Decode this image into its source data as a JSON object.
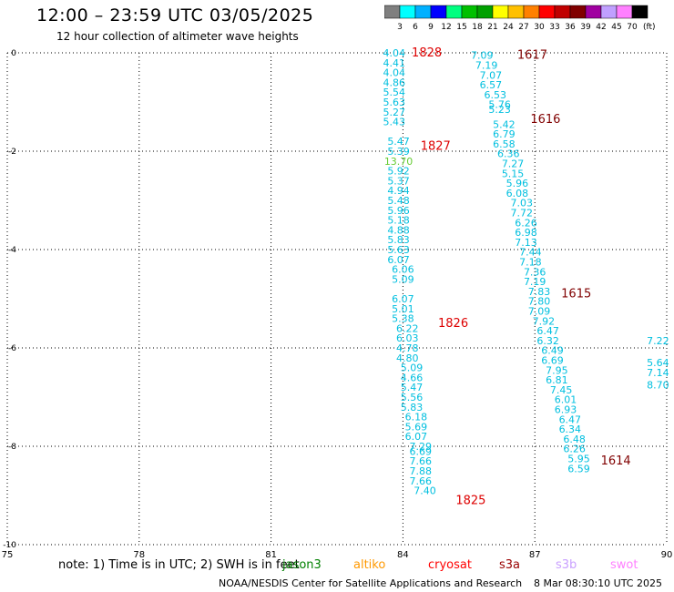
{
  "header": {
    "title": "12:00 – 23:59 UTC 03/05/2025",
    "subtitle": "12 hour collection of altimeter wave heights"
  },
  "colorbar": {
    "unit": "(ft)",
    "colors": [
      "#7f7f7f",
      "#00ffff",
      "#00b0ff",
      "#0000ff",
      "#00ff80",
      "#00c000",
      "#00a000",
      "#ffff00",
      "#ffc000",
      "#ff8000",
      "#ff0000",
      "#c00000",
      "#800000",
      "#a000a0",
      "#c0a0ff",
      "#ff80ff",
      "#000000"
    ],
    "ticks": [
      "3",
      "6",
      "9",
      "12",
      "15",
      "18",
      "21",
      "24",
      "27",
      "30",
      "33",
      "36",
      "39",
      "42",
      "45",
      "70"
    ]
  },
  "footer": {
    "note": "note:  1) Time is in UTC; 2) SWH is in feet",
    "satellites": [
      {
        "name": "jason3",
        "color": "#008000"
      },
      {
        "name": "altiko",
        "color": "#ff9900"
      },
      {
        "name": "cryosat",
        "color": "#ff0000"
      },
      {
        "name": "s3a",
        "color": "#990000"
      },
      {
        "name": "s3b",
        "color": "#c9a0ff"
      },
      {
        "name": "swot",
        "color": "#ff80ff"
      }
    ],
    "credit": "NOAA/NESDIS Center for Satellite Applications and Research",
    "timestamp": "8 Mar 08:30:10 UTC 2025"
  },
  "chart_data": {
    "type": "scatter",
    "xlim": [
      75,
      90
    ],
    "ylim": [
      -10,
      0
    ],
    "x_ticks": [
      "75",
      "78",
      "81",
      "84",
      "87",
      "90"
    ],
    "y_ticks": [
      "0",
      "-2",
      "-4",
      "-6",
      "-8",
      "-10"
    ],
    "grid": true,
    "pass_labels": [
      {
        "text": "1828",
        "x": 84.2,
        "y": 0.0,
        "color": "#dd0000"
      },
      {
        "text": "1827",
        "x": 84.4,
        "y": -1.9,
        "color": "#dd0000"
      },
      {
        "text": "1826",
        "x": 84.8,
        "y": -5.5,
        "color": "#dd0000"
      },
      {
        "text": "1825",
        "x": 85.2,
        "y": -9.1,
        "color": "#dd0000"
      },
      {
        "text": "1617",
        "x": 86.6,
        "y": -0.05,
        "color": "#800000"
      },
      {
        "text": "1616",
        "x": 86.9,
        "y": -1.35,
        "color": "#800000"
      },
      {
        "text": "1615",
        "x": 87.6,
        "y": -4.9,
        "color": "#800000"
      },
      {
        "text": "1614",
        "x": 88.5,
        "y": -8.3,
        "color": "#800000"
      }
    ],
    "series": [
      {
        "color": "#00bfdf",
        "points": [
          {
            "x": 83.8,
            "y": 0.0,
            "v": "4.04"
          },
          {
            "x": 83.8,
            "y": -0.2,
            "v": "4.41"
          },
          {
            "x": 83.8,
            "y": -0.4,
            "v": "4.04"
          },
          {
            "x": 83.8,
            "y": -0.6,
            "v": "4.86"
          },
          {
            "x": 83.8,
            "y": -0.8,
            "v": "5.54"
          },
          {
            "x": 83.8,
            "y": -1.0,
            "v": "5.63"
          },
          {
            "x": 83.8,
            "y": -1.2,
            "v": "5.27"
          },
          {
            "x": 83.8,
            "y": -1.4,
            "v": "5.43"
          },
          {
            "x": 83.9,
            "y": -1.8,
            "v": "5.47"
          },
          {
            "x": 83.9,
            "y": -2.0,
            "v": "5.39"
          },
          {
            "x": 83.9,
            "y": -2.2,
            "v": "13.70",
            "color": "#66cc33"
          },
          {
            "x": 83.9,
            "y": -2.4,
            "v": "5.92"
          },
          {
            "x": 83.9,
            "y": -2.6,
            "v": "5.37"
          },
          {
            "x": 83.9,
            "y": -2.8,
            "v": "4.94"
          },
          {
            "x": 83.9,
            "y": -3.0,
            "v": "5.48"
          },
          {
            "x": 83.9,
            "y": -3.2,
            "v": "5.96"
          },
          {
            "x": 83.9,
            "y": -3.4,
            "v": "5.18"
          },
          {
            "x": 83.9,
            "y": -3.6,
            "v": "4.88"
          },
          {
            "x": 83.9,
            "y": -3.8,
            "v": "5.83"
          },
          {
            "x": 83.9,
            "y": -4.0,
            "v": "5.63"
          },
          {
            "x": 83.9,
            "y": -4.2,
            "v": "6.07"
          },
          {
            "x": 84.0,
            "y": -4.4,
            "v": "6.06"
          },
          {
            "x": 84.0,
            "y": -4.6,
            "v": "5.09"
          },
          {
            "x": 84.0,
            "y": -5.0,
            "v": "6.07"
          },
          {
            "x": 84.0,
            "y": -5.2,
            "v": "5.01"
          },
          {
            "x": 84.0,
            "y": -5.4,
            "v": "5.38"
          },
          {
            "x": 84.1,
            "y": -5.6,
            "v": "6.22"
          },
          {
            "x": 84.1,
            "y": -5.8,
            "v": "6.03"
          },
          {
            "x": 84.1,
            "y": -6.0,
            "v": "4.78"
          },
          {
            "x": 84.1,
            "y": -6.2,
            "v": "4.80"
          },
          {
            "x": 84.2,
            "y": -6.4,
            "v": "5.09"
          },
          {
            "x": 84.2,
            "y": -6.6,
            "v": "4.66"
          },
          {
            "x": 84.2,
            "y": -6.8,
            "v": "5.47"
          },
          {
            "x": 84.2,
            "y": -7.0,
            "v": "5.56"
          },
          {
            "x": 84.2,
            "y": -7.2,
            "v": "5.83"
          },
          {
            "x": 84.3,
            "y": -7.4,
            "v": "6.18"
          },
          {
            "x": 84.3,
            "y": -7.6,
            "v": "5.69"
          },
          {
            "x": 84.3,
            "y": -7.8,
            "v": "6.07"
          },
          {
            "x": 84.4,
            "y": -8.0,
            "v": "7.29"
          },
          {
            "x": 84.4,
            "y": -8.1,
            "v": "6.69"
          },
          {
            "x": 84.4,
            "y": -8.3,
            "v": "7.66"
          },
          {
            "x": 84.4,
            "y": -8.5,
            "v": "7.88"
          },
          {
            "x": 84.4,
            "y": -8.7,
            "v": "7.66"
          },
          {
            "x": 84.5,
            "y": -8.9,
            "v": "7.40"
          },
          {
            "x": 85.8,
            "y": -0.05,
            "v": "7.09"
          },
          {
            "x": 85.9,
            "y": -0.25,
            "v": "7.19"
          },
          {
            "x": 86.0,
            "y": -0.45,
            "v": "7.07"
          },
          {
            "x": 86.0,
            "y": -0.65,
            "v": "6.57"
          },
          {
            "x": 86.1,
            "y": -0.85,
            "v": "6.53"
          },
          {
            "x": 86.2,
            "y": -1.05,
            "v": "5.76"
          },
          {
            "x": 86.2,
            "y": -1.15,
            "v": "5.23"
          },
          {
            "x": 86.3,
            "y": -1.45,
            "v": "5.42"
          },
          {
            "x": 86.3,
            "y": -1.65,
            "v": "6.79"
          },
          {
            "x": 86.3,
            "y": -1.85,
            "v": "6.58"
          },
          {
            "x": 86.4,
            "y": -2.05,
            "v": "6.36"
          },
          {
            "x": 86.5,
            "y": -2.25,
            "v": "7.27"
          },
          {
            "x": 86.5,
            "y": -2.45,
            "v": "5.15"
          },
          {
            "x": 86.6,
            "y": -2.65,
            "v": "5.96"
          },
          {
            "x": 86.6,
            "y": -2.85,
            "v": "6.08"
          },
          {
            "x": 86.7,
            "y": -3.05,
            "v": "7.03"
          },
          {
            "x": 86.7,
            "y": -3.25,
            "v": "7.72"
          },
          {
            "x": 86.8,
            "y": -3.45,
            "v": "6.26"
          },
          {
            "x": 86.8,
            "y": -3.65,
            "v": "6.98"
          },
          {
            "x": 86.8,
            "y": -3.85,
            "v": "7.13"
          },
          {
            "x": 86.9,
            "y": -4.05,
            "v": "7.44"
          },
          {
            "x": 86.9,
            "y": -4.25,
            "v": "7.18"
          },
          {
            "x": 87.0,
            "y": -4.45,
            "v": "7.36"
          },
          {
            "x": 87.0,
            "y": -4.65,
            "v": "7.19"
          },
          {
            "x": 87.1,
            "y": -4.85,
            "v": "7.83"
          },
          {
            "x": 87.1,
            "y": -5.05,
            "v": "7.80"
          },
          {
            "x": 87.1,
            "y": -5.25,
            "v": "7.09"
          },
          {
            "x": 87.2,
            "y": -5.45,
            "v": "7.92"
          },
          {
            "x": 87.3,
            "y": -5.65,
            "v": "6.47"
          },
          {
            "x": 87.3,
            "y": -5.85,
            "v": "6.32"
          },
          {
            "x": 87.4,
            "y": -6.05,
            "v": "6.49"
          },
          {
            "x": 87.4,
            "y": -6.25,
            "v": "6.69"
          },
          {
            "x": 87.5,
            "y": -6.45,
            "v": "7.95"
          },
          {
            "x": 87.5,
            "y": -6.65,
            "v": "6.81"
          },
          {
            "x": 87.6,
            "y": -6.85,
            "v": "7.45"
          },
          {
            "x": 87.7,
            "y": -7.05,
            "v": "6.01"
          },
          {
            "x": 87.7,
            "y": -7.25,
            "v": "6.93"
          },
          {
            "x": 87.8,
            "y": -7.45,
            "v": "6.47"
          },
          {
            "x": 87.8,
            "y": -7.65,
            "v": "6.34"
          },
          {
            "x": 87.9,
            "y": -7.85,
            "v": "6.48"
          },
          {
            "x": 87.9,
            "y": -8.05,
            "v": "6.26"
          },
          {
            "x": 88.0,
            "y": -8.25,
            "v": "5.95"
          },
          {
            "x": 88.0,
            "y": -8.45,
            "v": "6.59"
          },
          {
            "x": 89.8,
            "y": -5.85,
            "v": "7.22"
          },
          {
            "x": 89.8,
            "y": -6.3,
            "v": "5.64"
          },
          {
            "x": 89.8,
            "y": -6.5,
            "v": "7.14"
          },
          {
            "x": 89.8,
            "y": -6.75,
            "v": "8.70"
          }
        ]
      }
    ]
  }
}
